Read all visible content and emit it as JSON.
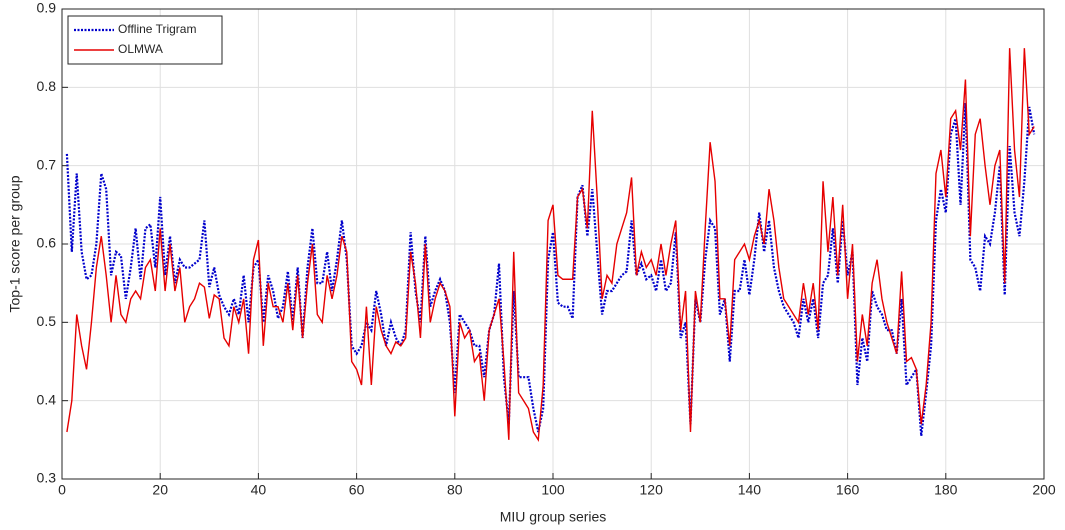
{
  "chart_data": {
    "type": "line",
    "x_label": "MIU group series",
    "y_label": "Top-1 score per group",
    "xlim": [
      0,
      200
    ],
    "ylim": [
      0.3,
      0.9
    ],
    "xticks": [
      0,
      20,
      40,
      60,
      80,
      100,
      120,
      140,
      160,
      180,
      200
    ],
    "yticks": [
      0.3,
      0.4,
      0.5,
      0.6,
      0.7,
      0.8,
      0.9
    ],
    "grid": true,
    "legend": "upper-left",
    "x": [
      1,
      2,
      3,
      4,
      5,
      6,
      7,
      8,
      9,
      10,
      11,
      12,
      13,
      14,
      15,
      16,
      17,
      18,
      19,
      20,
      21,
      22,
      23,
      24,
      25,
      26,
      27,
      28,
      29,
      30,
      31,
      32,
      33,
      34,
      35,
      36,
      37,
      38,
      39,
      40,
      41,
      42,
      43,
      44,
      45,
      46,
      47,
      48,
      49,
      50,
      51,
      52,
      53,
      54,
      55,
      56,
      57,
      58,
      59,
      60,
      61,
      62,
      63,
      64,
      65,
      66,
      67,
      68,
      69,
      70,
      71,
      72,
      73,
      74,
      75,
      76,
      77,
      78,
      79,
      80,
      81,
      82,
      83,
      84,
      85,
      86,
      87,
      88,
      89,
      90,
      91,
      92,
      93,
      94,
      95,
      96,
      97,
      98,
      99,
      100,
      101,
      102,
      103,
      104,
      105,
      106,
      107,
      108,
      109,
      110,
      111,
      112,
      113,
      114,
      115,
      116,
      117,
      118,
      119,
      120,
      121,
      122,
      123,
      124,
      125,
      126,
      127,
      128,
      129,
      130,
      131,
      132,
      133,
      134,
      135,
      136,
      137,
      138,
      139,
      140,
      141,
      142,
      143,
      144,
      145,
      146,
      147,
      148,
      149,
      150,
      151,
      152,
      153,
      154,
      155,
      156,
      157,
      158,
      159,
      160,
      161,
      162,
      163,
      164,
      165,
      166,
      167,
      168,
      169,
      170,
      171,
      172,
      173,
      174,
      175,
      176,
      177,
      178,
      179,
      180,
      181,
      182,
      183,
      184,
      185,
      186,
      187,
      188,
      189,
      190,
      191,
      192,
      193,
      194,
      195,
      196,
      197,
      198
    ],
    "series": [
      {
        "name": "Offline Trigram",
        "color": "#0000cc",
        "dash": "dotted",
        "values": [
          0.715,
          0.59,
          0.69,
          0.59,
          0.555,
          0.56,
          0.6,
          0.69,
          0.67,
          0.56,
          0.59,
          0.585,
          0.53,
          0.57,
          0.62,
          0.555,
          0.62,
          0.625,
          0.57,
          0.66,
          0.56,
          0.61,
          0.55,
          0.58,
          0.57,
          0.57,
          0.575,
          0.58,
          0.63,
          0.545,
          0.57,
          0.535,
          0.52,
          0.51,
          0.53,
          0.51,
          0.56,
          0.5,
          0.57,
          0.58,
          0.5,
          0.56,
          0.54,
          0.505,
          0.52,
          0.565,
          0.5,
          0.57,
          0.48,
          0.57,
          0.62,
          0.55,
          0.55,
          0.59,
          0.54,
          0.58,
          0.63,
          0.58,
          0.47,
          0.46,
          0.47,
          0.5,
          0.49,
          0.54,
          0.51,
          0.47,
          0.5,
          0.48,
          0.47,
          0.49,
          0.615,
          0.54,
          0.5,
          0.61,
          0.52,
          0.54,
          0.555,
          0.54,
          0.5,
          0.41,
          0.51,
          0.5,
          0.49,
          0.47,
          0.47,
          0.43,
          0.49,
          0.51,
          0.575,
          0.43,
          0.37,
          0.54,
          0.43,
          0.43,
          0.43,
          0.39,
          0.36,
          0.39,
          0.58,
          0.615,
          0.525,
          0.52,
          0.52,
          0.505,
          0.66,
          0.675,
          0.61,
          0.67,
          0.59,
          0.51,
          0.54,
          0.54,
          0.55,
          0.56,
          0.565,
          0.63,
          0.56,
          0.575,
          0.555,
          0.56,
          0.54,
          0.58,
          0.54,
          0.55,
          0.615,
          0.48,
          0.5,
          0.37,
          0.53,
          0.5,
          0.58,
          0.63,
          0.62,
          0.51,
          0.53,
          0.45,
          0.54,
          0.54,
          0.58,
          0.535,
          0.58,
          0.64,
          0.59,
          0.63,
          0.57,
          0.54,
          0.52,
          0.51,
          0.5,
          0.48,
          0.53,
          0.5,
          0.53,
          0.48,
          0.55,
          0.56,
          0.62,
          0.55,
          0.63,
          0.56,
          0.59,
          0.42,
          0.48,
          0.45,
          0.54,
          0.52,
          0.51,
          0.49,
          0.49,
          0.46,
          0.53,
          0.42,
          0.43,
          0.44,
          0.355,
          0.41,
          0.47,
          0.63,
          0.67,
          0.64,
          0.74,
          0.76,
          0.65,
          0.78,
          0.58,
          0.57,
          0.54,
          0.61,
          0.6,
          0.64,
          0.7,
          0.535,
          0.725,
          0.64,
          0.61,
          0.68,
          0.775,
          0.74
        ]
      },
      {
        "name": "OLMWA",
        "color": "#e60000",
        "dash": "solid",
        "values": [
          0.36,
          0.4,
          0.51,
          0.47,
          0.44,
          0.5,
          0.57,
          0.61,
          0.56,
          0.5,
          0.56,
          0.51,
          0.5,
          0.53,
          0.54,
          0.53,
          0.57,
          0.58,
          0.54,
          0.62,
          0.54,
          0.6,
          0.54,
          0.57,
          0.5,
          0.52,
          0.53,
          0.55,
          0.545,
          0.505,
          0.535,
          0.53,
          0.48,
          0.47,
          0.52,
          0.5,
          0.53,
          0.46,
          0.58,
          0.605,
          0.47,
          0.55,
          0.52,
          0.52,
          0.5,
          0.55,
          0.49,
          0.56,
          0.48,
          0.55,
          0.6,
          0.51,
          0.5,
          0.56,
          0.53,
          0.56,
          0.61,
          0.59,
          0.45,
          0.44,
          0.42,
          0.52,
          0.42,
          0.52,
          0.49,
          0.47,
          0.46,
          0.475,
          0.47,
          0.48,
          0.59,
          0.55,
          0.48,
          0.6,
          0.5,
          0.53,
          0.55,
          0.54,
          0.52,
          0.38,
          0.5,
          0.48,
          0.49,
          0.45,
          0.46,
          0.4,
          0.49,
          0.51,
          0.53,
          0.45,
          0.35,
          0.59,
          0.41,
          0.4,
          0.39,
          0.36,
          0.35,
          0.42,
          0.63,
          0.65,
          0.56,
          0.555,
          0.555,
          0.555,
          0.66,
          0.67,
          0.62,
          0.77,
          0.66,
          0.53,
          0.56,
          0.55,
          0.6,
          0.62,
          0.64,
          0.685,
          0.56,
          0.59,
          0.57,
          0.58,
          0.56,
          0.6,
          0.56,
          0.6,
          0.63,
          0.49,
          0.54,
          0.36,
          0.54,
          0.5,
          0.62,
          0.73,
          0.68,
          0.53,
          0.53,
          0.47,
          0.58,
          0.59,
          0.6,
          0.58,
          0.61,
          0.63,
          0.6,
          0.67,
          0.63,
          0.57,
          0.53,
          0.52,
          0.51,
          0.5,
          0.55,
          0.51,
          0.55,
          0.49,
          0.68,
          0.59,
          0.66,
          0.56,
          0.65,
          0.53,
          0.6,
          0.45,
          0.51,
          0.47,
          0.55,
          0.58,
          0.53,
          0.5,
          0.48,
          0.46,
          0.565,
          0.45,
          0.455,
          0.44,
          0.37,
          0.42,
          0.5,
          0.69,
          0.72,
          0.66,
          0.76,
          0.77,
          0.72,
          0.81,
          0.61,
          0.74,
          0.76,
          0.7,
          0.65,
          0.7,
          0.72,
          0.55,
          0.85,
          0.72,
          0.66,
          0.85,
          0.74,
          0.75
        ]
      }
    ]
  }
}
